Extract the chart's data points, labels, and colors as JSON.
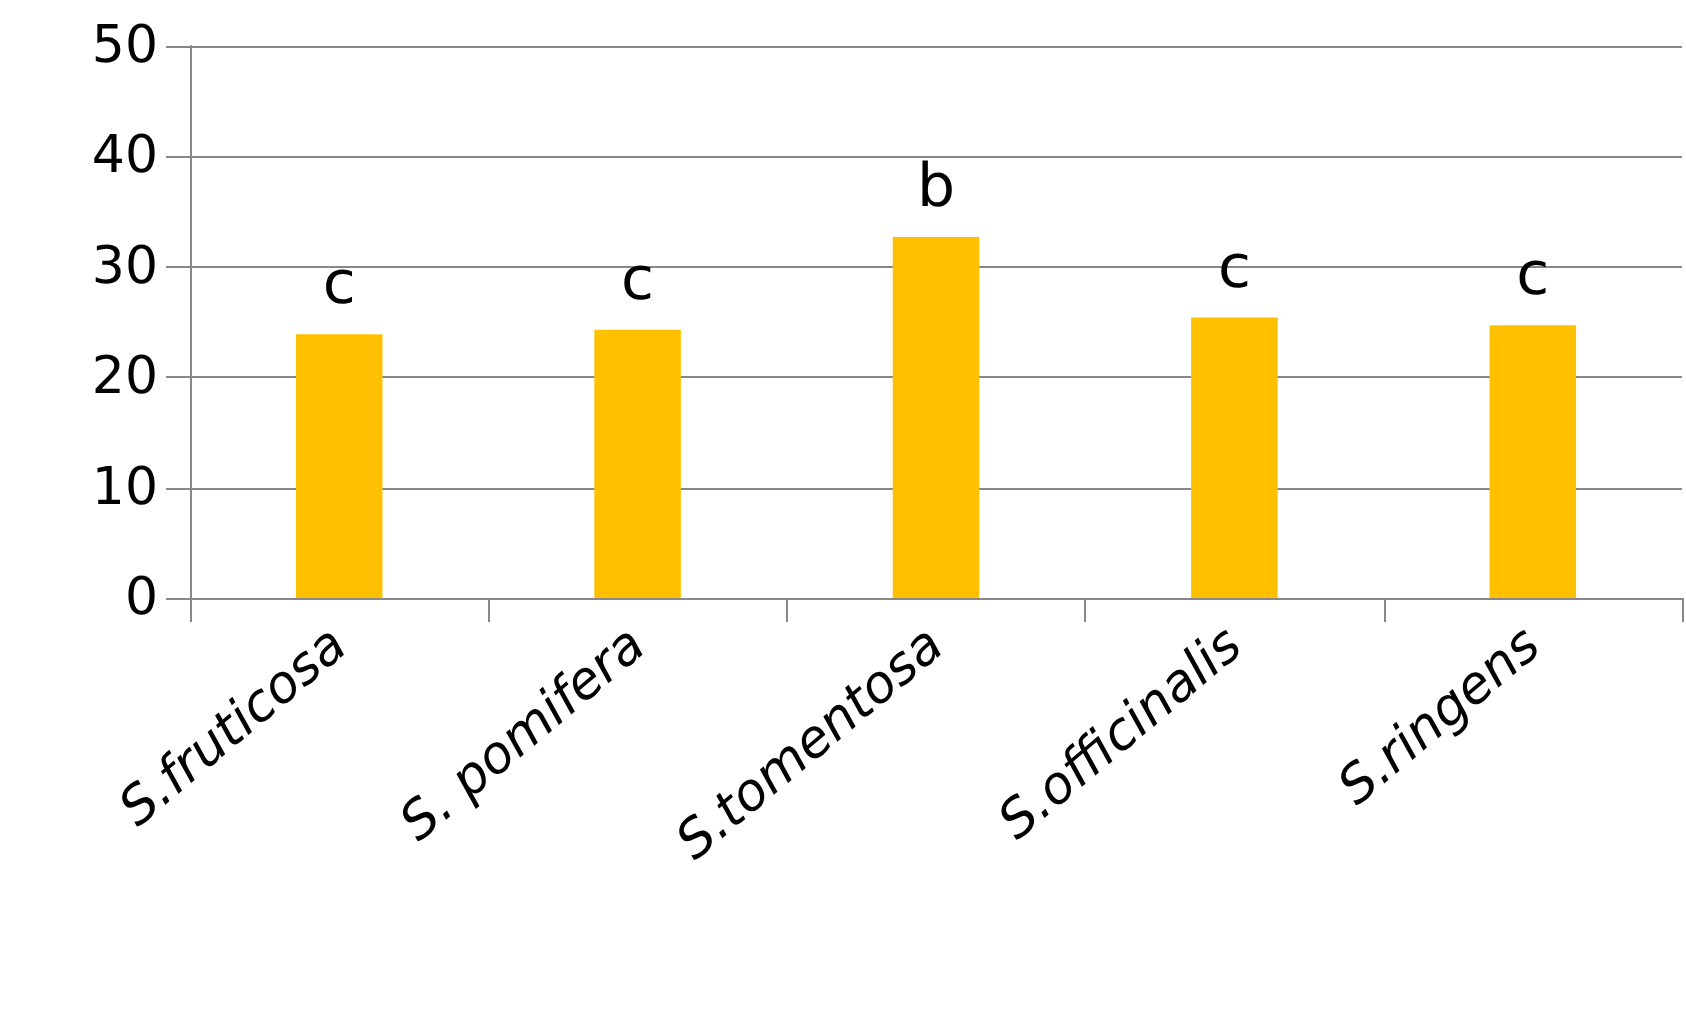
{
  "chart_data": {
    "type": "bar",
    "categories": [
      "S.fruticosa",
      "S. pomifera",
      "S.tomentosa",
      "S.officinalis",
      "S.ringens"
    ],
    "values": [
      23.9,
      24.3,
      32.7,
      25.4,
      24.7
    ],
    "color": "#ffc000",
    "ylim": [
      0,
      50
    ],
    "yticks": [
      0,
      10,
      20,
      30,
      40,
      50
    ],
    "grid": "y",
    "annotations": [
      {
        "text": "c",
        "x": "S.fruticosa",
        "y": 23.9
      },
      {
        "text": "c",
        "x": "S. pomifera",
        "y": 24.3
      },
      {
        "text": "b",
        "x": "S.tomentosa",
        "y": 32.7
      },
      {
        "text": "c",
        "x": "S.officinalis",
        "y": 25.4
      },
      {
        "text": "c",
        "x": "S.ringens",
        "y": 24.7
      }
    ]
  }
}
